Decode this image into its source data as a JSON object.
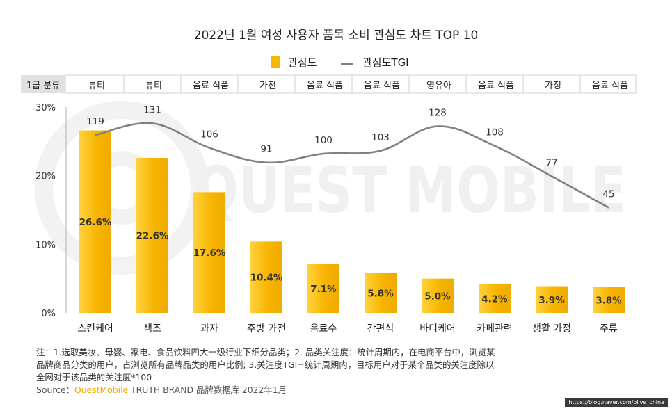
{
  "title": "2022년 1월 여성 사용자 품목 소비 관심도 차트 TOP 10",
  "legend": {
    "bar_label": "관심도",
    "line_label": "관심도TGI"
  },
  "watermark": "QUEST MOBILE",
  "category_header": "1급 분류",
  "colors": {
    "bar": "#f7b500",
    "bar_light": "#ffd23f",
    "line": "#808080",
    "text": "#222222"
  },
  "chart_data": {
    "type": "bar",
    "categories": [
      "스킨케어",
      "색조",
      "과자",
      "주방 가전",
      "음료수",
      "간편식",
      "바디케어",
      "카페관련",
      "생활 가정",
      "주류"
    ],
    "level1": [
      "뷰티",
      "뷰티",
      "음료 식품",
      "가전",
      "음료 식품",
      "음료 식품",
      "영유아",
      "음료 식품",
      "가정",
      "음료 식품"
    ],
    "series": [
      {
        "name": "관심도",
        "type": "bar",
        "values": [
          26.6,
          22.6,
          17.6,
          10.4,
          7.1,
          5.8,
          5.0,
          4.2,
          3.9,
          3.8
        ],
        "labels": [
          "26.6%",
          "22.6%",
          "17.6%",
          "10.4%",
          "7.1%",
          "5.8%",
          "5.0%",
          "4.2%",
          "3.9%",
          "3.8%"
        ]
      },
      {
        "name": "관심도TGI",
        "type": "line",
        "values": [
          119,
          131,
          106,
          91,
          100,
          103,
          128,
          108,
          77,
          45
        ]
      }
    ],
    "yticks": [
      "30%",
      "20%",
      "10%",
      "0%"
    ],
    "ylim": [
      0,
      30
    ],
    "grid": false,
    "legend_position": "top"
  },
  "footnote": {
    "line1": "注：1.选取美妆、母婴、家电、食品饮料四大一级行业下细分品类；2. 品类关注度：统计周期内，在电商平台中，浏览某",
    "line2": "品牌商品分类的用户，占浏览所有品牌品类的用户比例; 3.关注度TGI=统计周期内，目标用户对于某个品类的关注度除以",
    "line3": "全网对于该品类的关注度*100",
    "source_prefix": "Source：",
    "source_brand": "QuestMobile",
    "source_suffix": " TRUTH BRAND 品牌数据库 2022年1月"
  },
  "credit": "https://blog.naver.com/olive_china"
}
